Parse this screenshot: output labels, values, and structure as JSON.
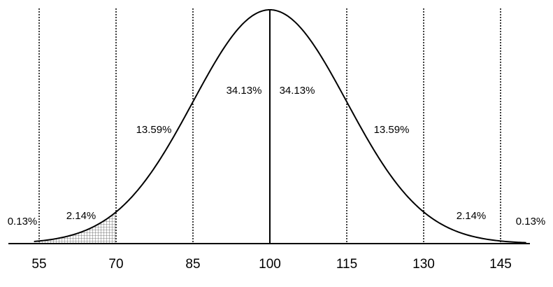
{
  "chart_data": {
    "type": "area",
    "title": "",
    "xlabel": "",
    "ylabel": "",
    "distribution": {
      "mean": 100,
      "sd": 15
    },
    "xlim": [
      54,
      150
    ],
    "x_ticks": [
      {
        "value": 55,
        "label": "55"
      },
      {
        "value": 70,
        "label": "70"
      },
      {
        "value": 85,
        "label": "85"
      },
      {
        "value": 100,
        "label": "100"
      },
      {
        "value": 115,
        "label": "115"
      },
      {
        "value": 130,
        "label": "130"
      },
      {
        "value": 145,
        "label": "145"
      }
    ],
    "boundaries": [
      {
        "x": 55,
        "style": "dotted"
      },
      {
        "x": 70,
        "style": "dotted"
      },
      {
        "x": 85,
        "style": "dotted"
      },
      {
        "x": 100,
        "style": "solid"
      },
      {
        "x": 115,
        "style": "dotted"
      },
      {
        "x": 130,
        "style": "dotted"
      },
      {
        "x": 145,
        "style": "dotted"
      }
    ],
    "region_labels": [
      {
        "range": "below 55",
        "label": "0.13%"
      },
      {
        "range": "55-70",
        "label": "2.14%"
      },
      {
        "range": "70-85",
        "label": "13.59%"
      },
      {
        "range": "85-100",
        "label": "34.13%"
      },
      {
        "range": "100-115",
        "label": "34.13%"
      },
      {
        "range": "115-130",
        "label": "13.59%"
      },
      {
        "range": "130-145",
        "label": "2.14%"
      },
      {
        "range": "above 145",
        "label": "0.13%"
      }
    ],
    "shaded_region": {
      "from": 55,
      "to": 70,
      "pattern": "grid"
    },
    "grid": false,
    "legend": "none"
  }
}
